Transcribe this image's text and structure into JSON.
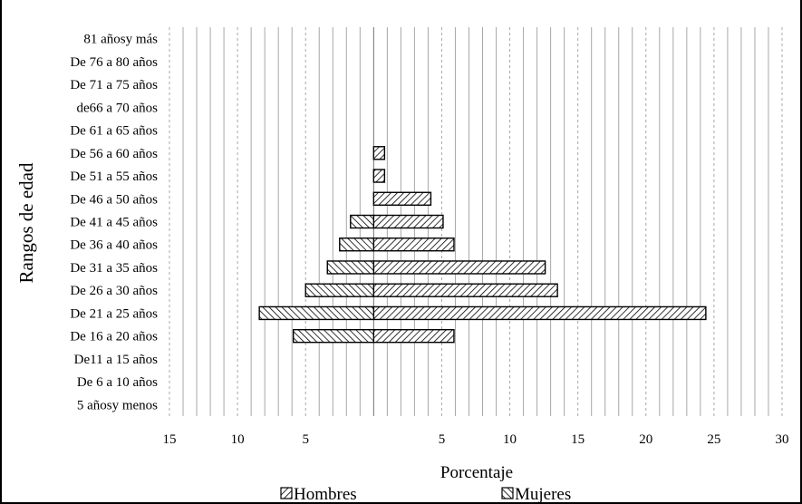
{
  "chart_data": {
    "type": "bar",
    "orientation": "horizontal",
    "subtype": "population-pyramid",
    "categories": [
      "5 añosy menos",
      "De 6 a 10 años",
      "De11 a 15 años",
      "De 16 a 20 años",
      "De 21 a 25 años",
      "De 26 a 30 años",
      "De 31 a 35 años",
      "De 36 a 40 años",
      "De 41 a 45 años",
      "De 46 a 50 años",
      "De 51 a 55 años",
      "De 56 a 60 años",
      "De 61 a 65 años",
      "de66 a 70 años",
      "De 71 a 75 años",
      "De 76 a 80 años",
      "81 añosy más"
    ],
    "series": [
      {
        "name": "Hombres",
        "side": "right",
        "values": [
          0,
          0,
          0,
          5.9,
          24.4,
          13.5,
          12.6,
          5.9,
          5.1,
          4.2,
          0.8,
          0.8,
          0,
          0,
          0,
          0,
          0
        ]
      },
      {
        "name": "Mujeres",
        "side": "left",
        "values": [
          0,
          0,
          0,
          5.9,
          8.4,
          5.0,
          3.4,
          2.5,
          1.7,
          0,
          0,
          0,
          0,
          0,
          0,
          0,
          0
        ]
      }
    ],
    "xlabel": "Porcentaje",
    "ylabel": "Rangos de edad",
    "xticks": [
      "15",
      "10",
      "5",
      "",
      "5",
      "10",
      "15",
      "20",
      "25",
      "30"
    ],
    "xlim_left": 15,
    "xlim_right": 30,
    "grid": true,
    "legend_position": "bottom"
  }
}
